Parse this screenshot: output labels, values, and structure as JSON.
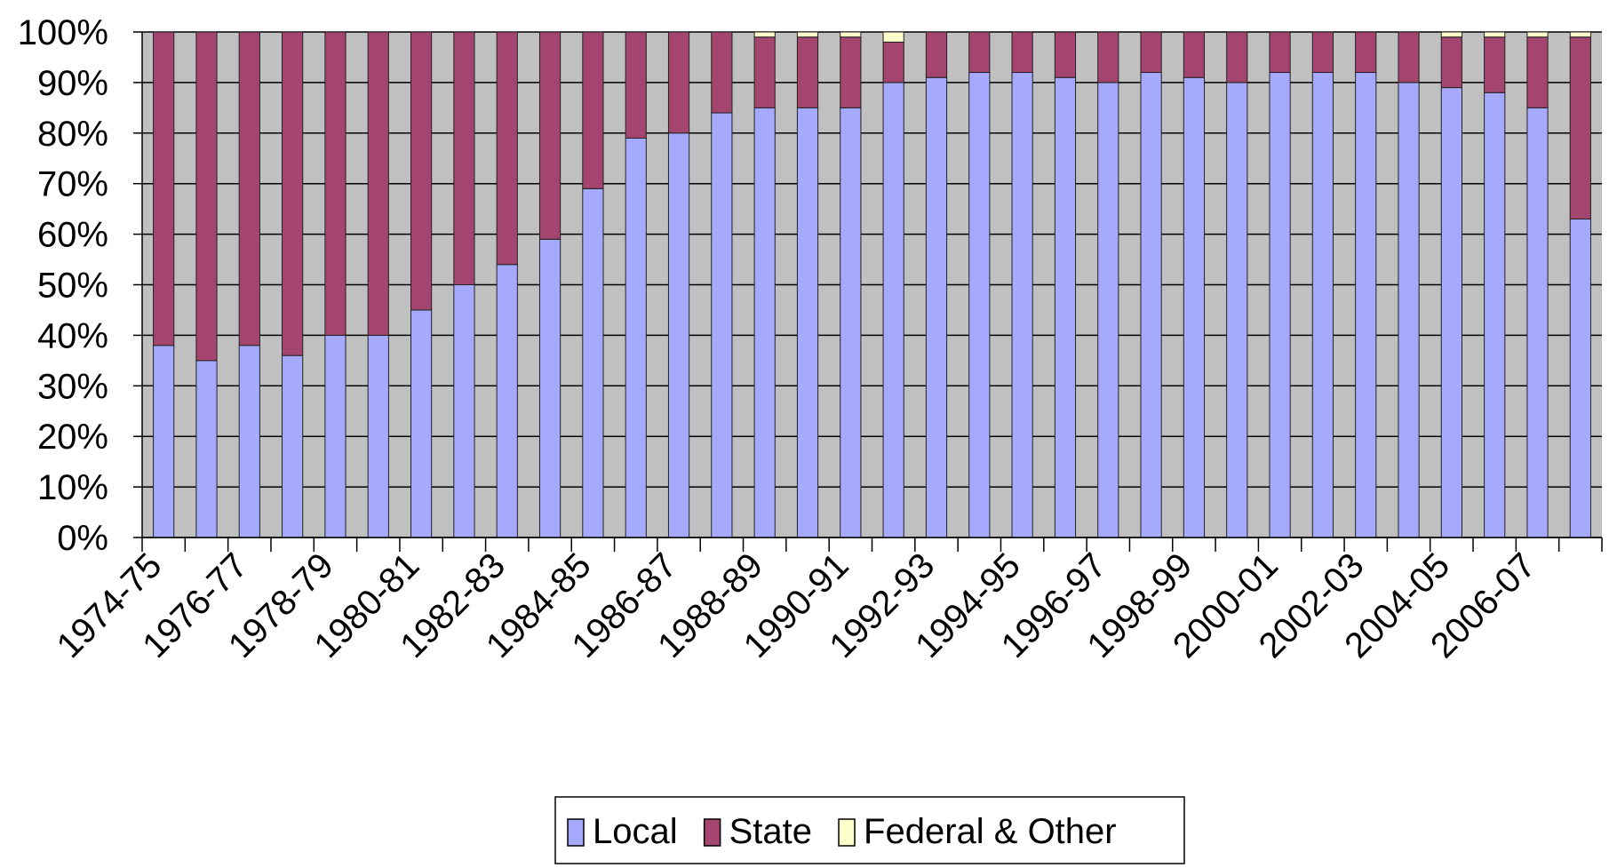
{
  "chart_data": {
    "type": "stacked_bar_100",
    "categories": [
      "1974-75",
      null,
      "1976-77",
      null,
      "1978-79",
      null,
      "1980-81",
      null,
      "1982-83",
      null,
      "1984-85",
      null,
      "1986-87",
      null,
      "1988-89",
      null,
      "1990-91",
      null,
      "1992-93",
      null,
      "1994-95",
      null,
      "1996-97",
      null,
      "1998-99",
      null,
      "2000-01",
      null,
      "2002-03",
      null,
      "2004-05",
      null,
      "2006-07",
      null
    ],
    "series": [
      {
        "name": "Local",
        "color": "#a6aaff",
        "values": [
          38,
          35,
          38,
          36,
          40,
          40,
          45,
          50,
          54,
          59,
          69,
          79,
          80,
          84,
          85,
          85,
          85,
          90,
          91,
          92,
          92,
          91,
          90,
          92,
          91,
          90,
          92,
          92,
          92,
          90,
          89,
          88,
          85,
          63
        ]
      },
      {
        "name": "State",
        "color": "#a3456f",
        "values": [
          62,
          65,
          62,
          64,
          60,
          60,
          55,
          50,
          46,
          41,
          31,
          21,
          20,
          16,
          14,
          14,
          14,
          8,
          9,
          8,
          8,
          9,
          10,
          8,
          9,
          10,
          8,
          8,
          8,
          10,
          10,
          11,
          14,
          36
        ]
      },
      {
        "name": "Federal & Other",
        "color": "#ffffcc",
        "values": [
          0,
          0,
          0,
          0,
          0,
          0,
          0,
          0,
          0,
          0,
          0,
          0,
          0,
          0,
          1,
          1,
          1,
          2,
          0,
          0,
          0,
          0,
          0,
          0,
          0,
          0,
          0,
          0,
          0,
          0,
          1,
          1,
          1,
          1
        ]
      }
    ],
    "ylim": [
      0,
      100
    ],
    "yticks": [
      {
        "value": 0,
        "label": "0%"
      },
      {
        "value": 10,
        "label": "10%"
      },
      {
        "value": 20,
        "label": "20%"
      },
      {
        "value": 30,
        "label": "30%"
      },
      {
        "value": 40,
        "label": "40%"
      },
      {
        "value": 50,
        "label": "50%"
      },
      {
        "value": 60,
        "label": "60%"
      },
      {
        "value": 70,
        "label": "70%"
      },
      {
        "value": 80,
        "label": "80%"
      },
      {
        "value": 90,
        "label": "90%"
      },
      {
        "value": 100,
        "label": "100%"
      }
    ],
    "grid": true,
    "legend": "bottom"
  }
}
